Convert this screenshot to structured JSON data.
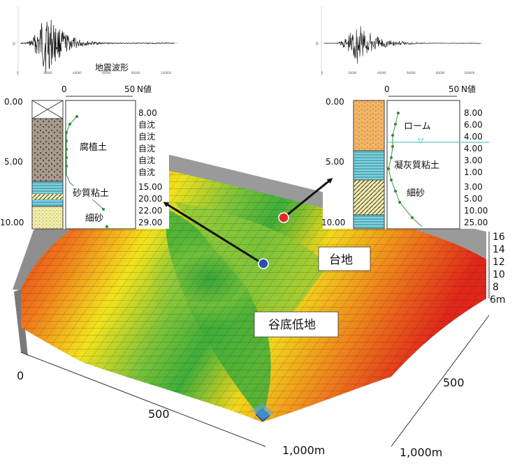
{
  "seismograms": {
    "left_caption": "地震波形",
    "left_tick_labels": [
      "0",
      "20000",
      "40000",
      "60000",
      "80000",
      "100000"
    ],
    "right_tick_labels": [
      "0",
      "20000",
      "40000",
      "60000",
      "80000",
      "100000"
    ],
    "left_y_label": "0",
    "right_y_label": "0"
  },
  "left_log": {
    "nvalue_axis": {
      "start": "0",
      "end": "50",
      "unit": "N値"
    },
    "depth_labels": [
      "0.00",
      "5.00",
      "10.00"
    ],
    "layers": [
      "腐植土",
      "砂質粘土",
      "細砂"
    ],
    "n_values": [
      "8.00",
      "自沈",
      "自沈",
      "自沈",
      "自沈",
      "自沈",
      "15.00",
      "20.00",
      "22.00",
      "29.00"
    ]
  },
  "right_log": {
    "nvalue_axis": {
      "start": "0",
      "end": "50",
      "unit": "N値"
    },
    "depth_labels": [
      "0.00",
      "5.00",
      "10.00"
    ],
    "layers": [
      "ローム",
      "凝灰質粘土",
      "細砂"
    ],
    "n_values": [
      "8.00",
      "6.00",
      "4.00",
      "4.00",
      "3.00",
      "1.00",
      "3.00",
      "5.00",
      "10.00",
      "25.00"
    ]
  },
  "terrain": {
    "label_upland": "台地",
    "label_valley": "谷底低地",
    "elevation_ticks": [
      "16",
      "14",
      "12",
      "10",
      "8",
      "6m"
    ],
    "x_ticks": [
      "0",
      "500",
      "1,000m"
    ],
    "y_ticks": [
      "500",
      "1,000m"
    ],
    "colors": {
      "high": "#e0261a",
      "mid": "#f2e21c",
      "low": "#3fae3a",
      "lowest": "#1d5fb0"
    }
  },
  "markers": {
    "left_site_color": "#2a4fb5",
    "right_site_color": "#e32a2a"
  }
}
